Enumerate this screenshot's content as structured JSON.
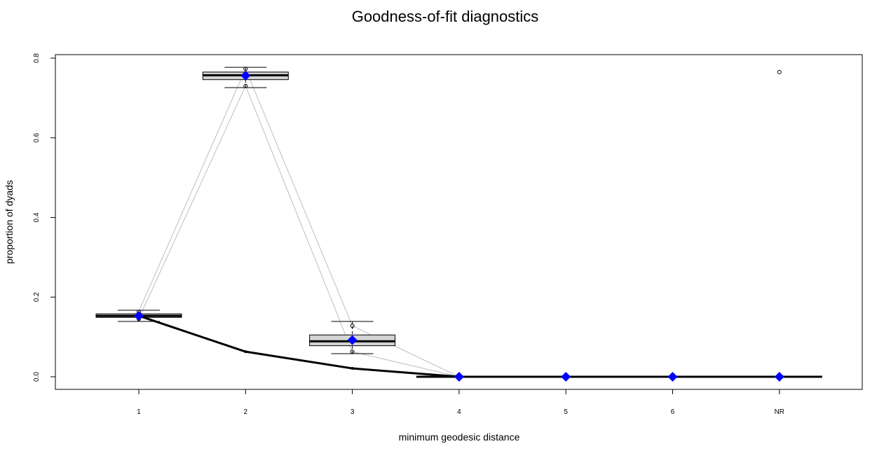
{
  "chart_data": {
    "type": "box",
    "title": "Goodness-of-fit diagnostics",
    "xlabel": "minimum geodesic distance",
    "ylabel": "proportion of dyads",
    "categories": [
      "1",
      "2",
      "3",
      "4",
      "5",
      "6",
      "NR"
    ],
    "y_ticks": [
      "0.0",
      "0.2",
      "0.4",
      "0.6",
      "0.8"
    ],
    "ylim": [
      -0.03,
      0.81
    ],
    "boxplots": [
      {
        "category": "1",
        "whisker_low": 0.139,
        "q1": 0.149,
        "median": 0.153,
        "q3": 0.158,
        "whisker_high": 0.167,
        "outliers": [
          0.145,
          0.163
        ]
      },
      {
        "category": "2",
        "whisker_low": 0.726,
        "q1": 0.746,
        "median": 0.757,
        "q3": 0.765,
        "whisker_high": 0.777,
        "outliers": [
          0.73,
          0.773
        ]
      },
      {
        "category": "3",
        "whisker_low": 0.058,
        "q1": 0.078,
        "median": 0.089,
        "q3": 0.105,
        "whisker_high": 0.139,
        "outliers": [
          0.063,
          0.128
        ]
      },
      {
        "category": "4",
        "whisker_low": 0,
        "q1": 0,
        "median": 0,
        "q3": 0,
        "whisker_high": 0,
        "outliers": []
      },
      {
        "category": "5",
        "whisker_low": 0,
        "q1": 0,
        "median": 0,
        "q3": 0,
        "whisker_high": 0,
        "outliers": []
      },
      {
        "category": "6",
        "whisker_low": 0,
        "q1": 0,
        "median": 0,
        "q3": 0,
        "whisker_high": 0,
        "outliers": []
      },
      {
        "category": "NR",
        "whisker_low": 0,
        "q1": 0,
        "median": 0,
        "q3": 0,
        "whisker_high": 0,
        "outliers": [
          0.765
        ]
      }
    ],
    "series": [
      {
        "values": [
          0.153,
          0.063,
          0.021,
          0,
          0,
          0,
          0
        ],
        "color": "#000000",
        "style": "line-thick"
      },
      {
        "values": [
          0.153,
          0.756,
          0.092,
          0,
          0,
          0,
          0
        ],
        "color": "#0000ff",
        "style": "diamond"
      },
      {
        "values": [
          0.146,
          0.73,
          0.063,
          0
        ],
        "color": "#bebebe",
        "style": "line-thin"
      },
      {
        "values": [
          0.164,
          0.773,
          0.128,
          0
        ],
        "color": "#bebebe",
        "style": "line-thin"
      }
    ],
    "grid": false,
    "box_fill": "#d3d3d3"
  }
}
